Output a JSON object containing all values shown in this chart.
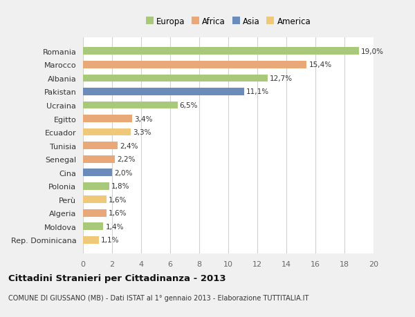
{
  "countries": [
    "Rep. Dominicana",
    "Moldova",
    "Algeria",
    "Perù",
    "Polonia",
    "Cina",
    "Senegal",
    "Tunisia",
    "Ecuador",
    "Egitto",
    "Ucraina",
    "Pakistan",
    "Albania",
    "Marocco",
    "Romania"
  ],
  "values": [
    1.1,
    1.4,
    1.6,
    1.6,
    1.8,
    2.0,
    2.2,
    2.4,
    3.3,
    3.4,
    6.5,
    11.1,
    12.7,
    15.4,
    19.0
  ],
  "labels": [
    "1,1%",
    "1,4%",
    "1,6%",
    "1,6%",
    "1,8%",
    "2,0%",
    "2,2%",
    "2,4%",
    "3,3%",
    "3,4%",
    "6,5%",
    "11,1%",
    "12,7%",
    "15,4%",
    "19,0%"
  ],
  "colors": [
    "#f0c87a",
    "#a8c87a",
    "#e8a878",
    "#f0c87a",
    "#a8c87a",
    "#6b8cba",
    "#e8a878",
    "#e8a878",
    "#f0c87a",
    "#e8a878",
    "#a8c87a",
    "#6b8cba",
    "#a8c87a",
    "#e8a878",
    "#a8c87a"
  ],
  "legend_labels": [
    "Europa",
    "Africa",
    "Asia",
    "America"
  ],
  "legend_colors": [
    "#a8c87a",
    "#e8a878",
    "#6b8cba",
    "#f0c87a"
  ],
  "title": "Cittadini Stranieri per Cittadinanza - 2013",
  "subtitle": "COMUNE DI GIUSSANO (MB) - Dati ISTAT al 1° gennaio 2013 - Elaborazione TUTTITALIA.IT",
  "xlim": [
    0,
    20
  ],
  "xticks": [
    0,
    2,
    4,
    6,
    8,
    10,
    12,
    14,
    16,
    18,
    20
  ],
  "bg_color": "#f0f0f0",
  "plot_bg_color": "#ffffff",
  "grid_color": "#d0d0d0",
  "bar_height": 0.55,
  "label_fontsize": 7.5,
  "ytick_fontsize": 8,
  "xtick_fontsize": 8,
  "title_fontsize": 9.5,
  "subtitle_fontsize": 7,
  "legend_fontsize": 8.5
}
